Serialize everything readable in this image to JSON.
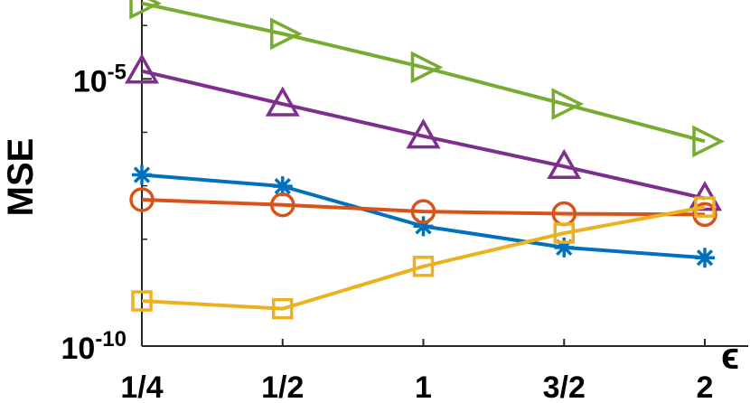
{
  "chart_data": {
    "type": "line",
    "title": "",
    "xlabel": "ϵ",
    "ylabel": "MSE",
    "yscale": "log",
    "ylim": [
      1e-10,
      0.0003
    ],
    "grid": false,
    "legend": "none",
    "categories": [
      "1/4",
      "1/2",
      "1",
      "3/2",
      "2"
    ],
    "y_ticks": [
      {
        "value": 1e-10,
        "base": "10",
        "exp": "-10"
      },
      {
        "value": 1e-05,
        "base": "10",
        "exp": "-5"
      }
    ],
    "series": [
      {
        "color": "#77AC30",
        "marker": "triangle-right",
        "values": [
          0.00026,
          7e-05,
          1.65e-05,
          3.4e-06,
          6.8e-07
        ]
      },
      {
        "color": "#7E2F8E",
        "marker": "triangle-up",
        "values": [
          1.4e-05,
          3.4e-06,
          8.5e-07,
          2.3e-07,
          5.8e-08
        ]
      },
      {
        "color": "#0072BD",
        "marker": "star",
        "values": [
          1.6e-07,
          9.8e-08,
          1.75e-08,
          7e-09,
          4.5e-09
        ]
      },
      {
        "color": "#D95319",
        "marker": "circle",
        "values": [
          5.5e-08,
          4.4e-08,
          3.3e-08,
          3e-08,
          2.9e-08
        ]
      },
      {
        "color": "#EDB120",
        "marker": "square",
        "values": [
          7e-10,
          5e-10,
          3.1e-09,
          1.3e-08,
          4e-08
        ]
      }
    ]
  }
}
